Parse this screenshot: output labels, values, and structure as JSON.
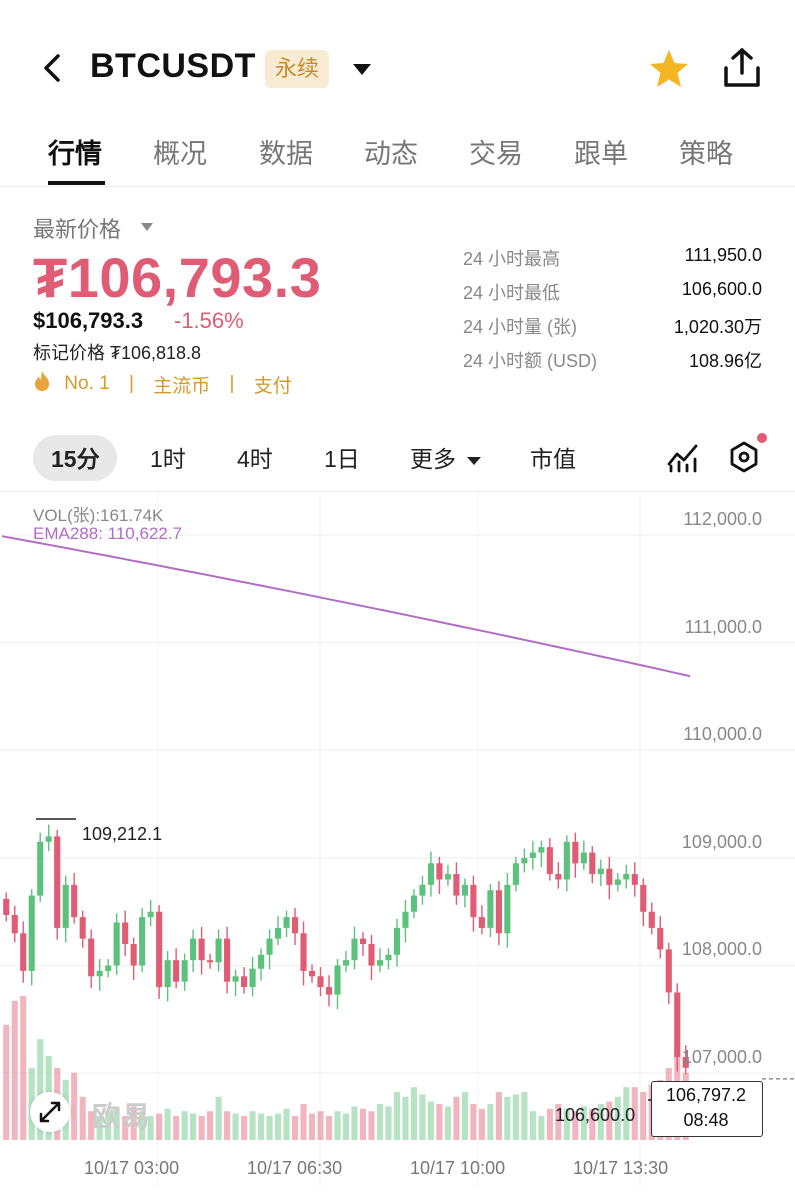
{
  "header": {
    "symbol": "BTCUSDT",
    "contract_type": "永续",
    "icons": {
      "back": "back-arrow-icon",
      "dropdown": "caret-down-icon",
      "favorite": "star-icon",
      "share": "share-icon"
    },
    "favorite_color": "#f5b625"
  },
  "tabs": [
    "行情",
    "概况",
    "数据",
    "动态",
    "交易",
    "跟单",
    "策略"
  ],
  "active_tab": "行情",
  "price": {
    "latest_label": "最新价格",
    "big_price": "₮106,793.3",
    "usd_price": "$106,793.3",
    "change_pct": "-1.56%",
    "mark_price": "标记价格 ₮106,818.8",
    "rank": "No. 1",
    "sep": "|",
    "tag1": "主流币",
    "tag2": "支付",
    "down_color": "#e05b74",
    "up_color": "#5cc17c"
  },
  "stats": [
    {
      "label": "24 小时最高",
      "value": "111,950.0"
    },
    {
      "label": "24 小时最低",
      "value": "106,600.0"
    },
    {
      "label": "24 小时量 (张)",
      "value": "1,020.30万"
    },
    {
      "label": "24 小时额 (USD)",
      "value": "108.96亿"
    }
  ],
  "intervals": [
    "15分",
    "1时",
    "4时",
    "1日",
    "更多",
    "市值"
  ],
  "active_interval": "15分",
  "chart_labels": {
    "vol": "VOL(张):161.74K",
    "ema": "EMA288: 110,622.7",
    "yticks": [
      "112,000.0",
      "111,000.0",
      "110,000.0",
      "109,000.0",
      "108,000.0",
      "107,000.0"
    ],
    "xticks": [
      "10/17 03:00",
      "10/17 06:30",
      "10/17 10:00",
      "10/17 13:30"
    ],
    "high_marker": "109,212.1",
    "low_marker": "106,600.0",
    "current_price": "106,797.2",
    "countdown": "08:48",
    "watermark": "欧易"
  },
  "chart_data": {
    "type": "candlestick",
    "interval": "15分",
    "ylim": [
      106400,
      112200
    ],
    "yticks": [
      112000,
      111000,
      110000,
      109000,
      108000,
      107000
    ],
    "xticks": [
      "10/17 03:00",
      "10/17 06:30",
      "10/17 10:00",
      "10/17 13:30"
    ],
    "ema288": {
      "name": "EMA288",
      "last": 110622.7,
      "start": 111840,
      "end": 110540,
      "color": "#b36cc6"
    },
    "high_marker": 109212.1,
    "low_marker": 106600.0,
    "current_price": 106797.2,
    "closes": [
      108320,
      108150,
      107800,
      108500,
      109000,
      109050,
      108200,
      108600,
      108300,
      108100,
      107750,
      107800,
      107850,
      108250,
      108050,
      107850,
      108300,
      108350,
      107650,
      107900,
      107700,
      107900,
      108100,
      107900,
      107880,
      108100,
      107700,
      107750,
      107650,
      107820,
      107950,
      108100,
      108200,
      108300,
      108150,
      107800,
      107750,
      107650,
      107580,
      107850,
      107900,
      108100,
      108050,
      107850,
      107900,
      107950,
      108200,
      108350,
      108500,
      108600,
      108800,
      108650,
      108700,
      108500,
      108600,
      108300,
      108200,
      108550,
      108150,
      108600,
      108800,
      108850,
      108900,
      108950,
      108700,
      108650,
      109000,
      108800,
      108900,
      108700,
      108750,
      108600,
      108650,
      108700,
      108600,
      108350,
      108200,
      108000,
      107600,
      107000,
      106900
    ],
    "volumes": [
      48,
      58,
      60,
      30,
      42,
      35,
      30,
      25,
      28,
      18,
      12,
      10,
      12,
      13,
      10,
      14,
      12,
      10,
      11,
      13,
      10,
      12,
      11,
      10,
      12,
      18,
      12,
      11,
      10,
      12,
      11,
      10,
      11,
      13,
      10,
      15,
      11,
      12,
      10,
      12,
      11,
      14,
      13,
      12,
      15,
      14,
      20,
      18,
      22,
      19,
      16,
      15,
      14,
      18,
      20,
      15,
      13,
      15,
      20,
      18,
      19,
      20,
      12,
      10,
      13,
      15,
      13,
      12,
      14,
      13,
      15,
      16,
      18,
      22,
      22,
      20,
      23,
      25,
      30,
      38,
      28
    ]
  }
}
